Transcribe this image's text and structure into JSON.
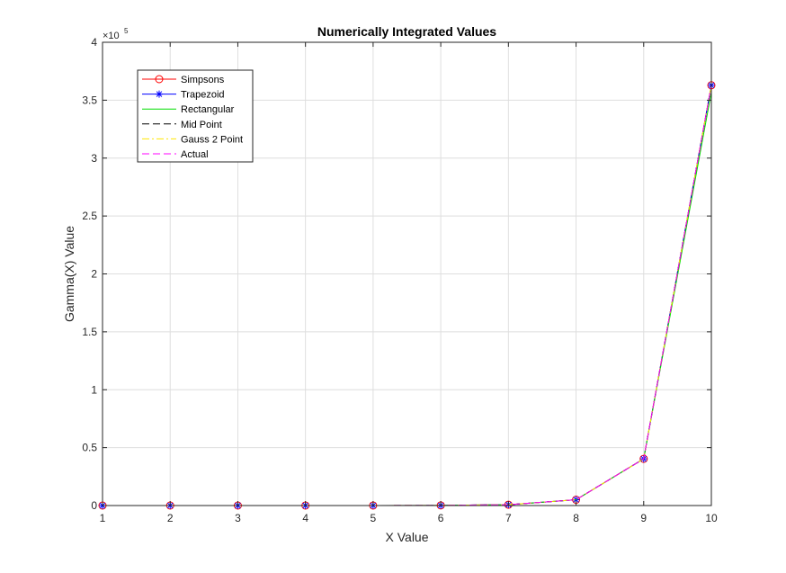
{
  "chart_data": {
    "type": "line",
    "title": "Numerically Integrated Values",
    "xlabel": "X Value",
    "ylabel": "Gamma(X) Value",
    "x": [
      1,
      2,
      3,
      4,
      5,
      6,
      7,
      8,
      9,
      10
    ],
    "xlim": [
      1,
      10
    ],
    "ylim": [
      0,
      400000
    ],
    "xticks": [
      1,
      2,
      3,
      4,
      5,
      6,
      7,
      8,
      9,
      10
    ],
    "xtick_labels": [
      "1",
      "2",
      "3",
      "4",
      "5",
      "6",
      "7",
      "8",
      "9",
      "10"
    ],
    "yticks": [
      0,
      50000,
      100000,
      150000,
      200000,
      250000,
      300000,
      350000,
      400000
    ],
    "ytick_labels": [
      "0",
      "0.5",
      "1",
      "1.5",
      "2",
      "2.5",
      "3",
      "3.5",
      "4"
    ],
    "y_exponent": {
      "base": "×10",
      "power": "5"
    },
    "grid": true,
    "legend_position": "top-left",
    "series": [
      {
        "name": "Simpsons",
        "color": "#ff0000",
        "marker": "circle",
        "dash": "solid",
        "values": [
          1,
          1,
          2,
          6,
          24,
          120,
          720,
          5040,
          40320,
          362880
        ]
      },
      {
        "name": "Trapezoid",
        "color": "#0000ff",
        "marker": "asterisk",
        "dash": "solid",
        "values": [
          1,
          1,
          2,
          6,
          24,
          120,
          720,
          5040,
          40320,
          362880
        ]
      },
      {
        "name": "Rectangular",
        "color": "#00dd00",
        "marker": "none",
        "dash": "solid",
        "values": [
          1,
          1,
          2,
          6,
          24,
          120,
          720,
          5040,
          40320,
          357000
        ]
      },
      {
        "name": "Mid Point",
        "color": "#000000",
        "marker": "none",
        "dash": "dashed",
        "values": [
          1,
          1,
          2,
          6,
          24,
          120,
          720,
          5040,
          40320,
          362880
        ]
      },
      {
        "name": "Gauss 2 Point",
        "color": "#ffe600",
        "marker": "none",
        "dash": "dashdot",
        "values": [
          1,
          1,
          2,
          6,
          24,
          120,
          720,
          5040,
          40320,
          362880
        ]
      },
      {
        "name": "Actual",
        "color": "#ff00ff",
        "marker": "none",
        "dash": "dashed",
        "values": [
          1,
          1,
          2,
          6,
          24,
          120,
          720,
          5040,
          40320,
          362880
        ]
      }
    ]
  }
}
